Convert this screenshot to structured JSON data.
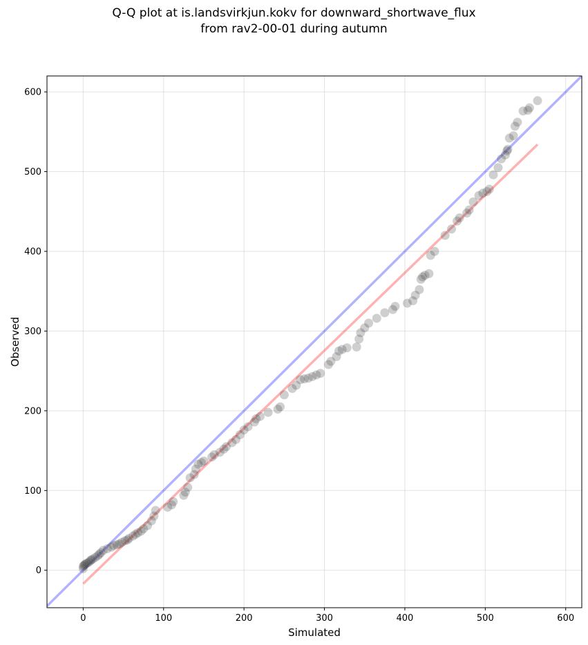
{
  "chart_data": {
    "type": "scatter",
    "title_lines": [
      "Q-Q plot at is.landsvirkjun.kokv for downward_shortwave_flux",
      "from rav2-00-01 during autumn"
    ],
    "xlabel": "Simulated",
    "ylabel": "Observed",
    "xlim": [
      -45,
      620
    ],
    "ylim": [
      -47,
      620
    ],
    "xticks": [
      0,
      100,
      200,
      300,
      400,
      500,
      600
    ],
    "yticks": [
      0,
      100,
      200,
      300,
      400,
      500,
      600
    ],
    "grid": true,
    "legend": "none",
    "colors": {
      "points": "#404040",
      "identity_line": "#0000ff",
      "fit_line": "#ff0000"
    },
    "reference_lines": [
      {
        "type": "identity",
        "color": "#0000ff",
        "x": [
          -45,
          620
        ],
        "y": [
          -45,
          620
        ]
      },
      {
        "type": "fit",
        "color": "#ff0000",
        "x": [
          0,
          565
        ],
        "y": [
          -17,
          534
        ]
      }
    ],
    "points": {
      "x": [
        0,
        0,
        1,
        2,
        3,
        5,
        7,
        9,
        10,
        12,
        15,
        18,
        20,
        22,
        25,
        30,
        35,
        38,
        42,
        45,
        48,
        52,
        55,
        57,
        62,
        65,
        68,
        72,
        75,
        80,
        85,
        88,
        90,
        105,
        110,
        112,
        125,
        127,
        130,
        133,
        138,
        140,
        143,
        147,
        150,
        160,
        163,
        170,
        175,
        178,
        185,
        190,
        195,
        200,
        205,
        213,
        215,
        220,
        230,
        242,
        245,
        250,
        260,
        265,
        270,
        275,
        280,
        285,
        290,
        295,
        305,
        308,
        315,
        318,
        322,
        328,
        340,
        343,
        345,
        350,
        355,
        365,
        375,
        385,
        388,
        403,
        410,
        413,
        418,
        420,
        422,
        425,
        430,
        432,
        437,
        450,
        458,
        465,
        468,
        477,
        480,
        485,
        492,
        497,
        502,
        505,
        510,
        516,
        520,
        525,
        527,
        528,
        530,
        535,
        537,
        540,
        547,
        553,
        555,
        565
      ],
      "y": [
        2,
        5,
        6,
        7,
        8,
        9,
        10,
        12,
        13,
        14,
        16,
        18,
        20,
        22,
        25,
        27,
        29,
        31,
        32,
        33,
        35,
        37,
        38,
        40,
        43,
        45,
        47,
        49,
        52,
        56,
        62,
        68,
        75,
        79,
        82,
        86,
        94,
        98,
        104,
        116,
        120,
        127,
        133,
        135,
        137,
        142,
        145,
        148,
        152,
        155,
        160,
        164,
        170,
        176,
        180,
        186,
        190,
        193,
        198,
        202,
        205,
        220,
        228,
        232,
        239,
        240,
        241,
        243,
        245,
        247,
        258,
        262,
        268,
        275,
        277,
        279,
        280,
        290,
        298,
        304,
        310,
        316,
        323,
        327,
        331,
        335,
        338,
        345,
        352,
        365,
        368,
        370,
        372,
        395,
        400,
        420,
        428,
        438,
        442,
        448,
        452,
        462,
        470,
        473,
        475,
        478,
        496,
        505,
        516,
        521,
        526,
        528,
        542,
        545,
        557,
        562,
        576,
        577,
        580,
        589
      ]
    },
    "annotations": []
  }
}
